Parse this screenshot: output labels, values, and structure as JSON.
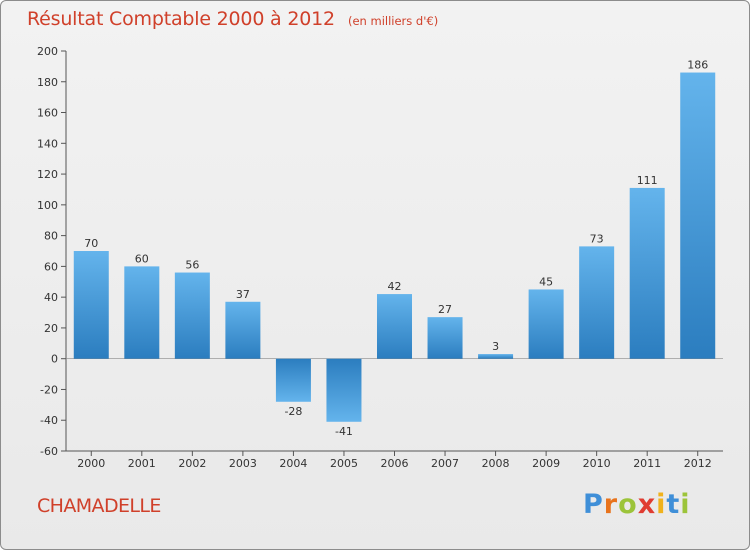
{
  "header": {
    "title": "Résultat Comptable 2000 à 2012",
    "subtitle": "(en milliers d'€)"
  },
  "footer": {
    "town": "CHAMADELLE",
    "logo_letters": [
      "P",
      "r",
      "o",
      "x",
      "i",
      "t",
      "i"
    ]
  },
  "colors": {
    "bar_light": "#64b4ec",
    "bar_dark": "#2b7dbf",
    "title": "#d0402a",
    "logo": [
      "#3f8fd8",
      "#e8731c",
      "#9cc43a",
      "#e03c31",
      "#f0b21c",
      "#3f8fd8",
      "#9cc43a"
    ]
  },
  "chart_data": {
    "type": "bar",
    "title": "Résultat Comptable 2000 à 2012",
    "subtitle": "(en milliers d'€)",
    "categories": [
      "2000",
      "2001",
      "2002",
      "2003",
      "2004",
      "2005",
      "2006",
      "2007",
      "2008",
      "2009",
      "2010",
      "2011",
      "2012"
    ],
    "values": [
      70,
      60,
      56,
      37,
      -28,
      -41,
      42,
      27,
      3,
      45,
      73,
      111,
      186
    ],
    "ylim": [
      -60,
      200
    ],
    "yticks": [
      -60,
      -40,
      -20,
      0,
      20,
      40,
      60,
      80,
      100,
      120,
      140,
      160,
      180,
      200
    ],
    "grid": false,
    "legend": "none"
  }
}
